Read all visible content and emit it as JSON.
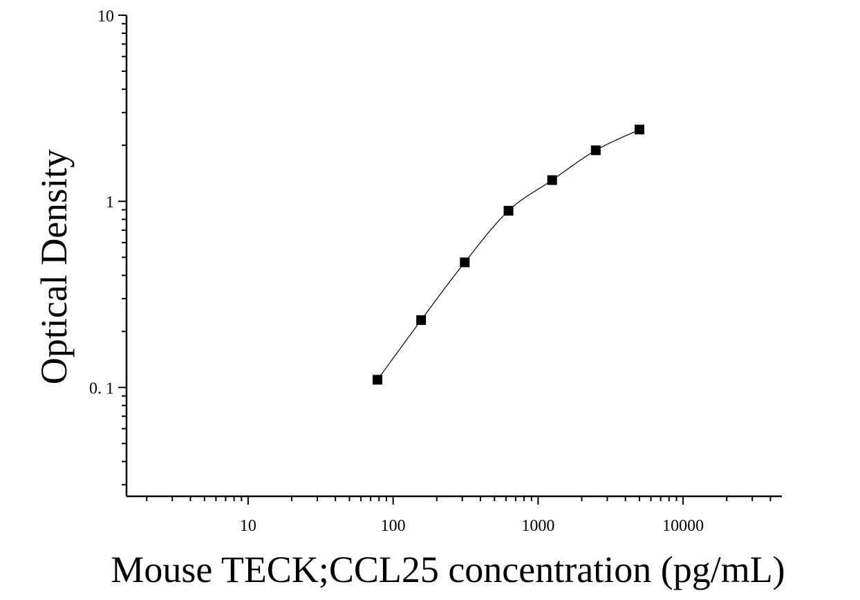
{
  "chart_data": {
    "type": "scatter",
    "title": "",
    "xlabel": "Mouse TECK;CCL25 concentration (pg/mL)",
    "ylabel": "Optical Density",
    "x_scale": "log",
    "y_scale": "log",
    "xlim": [
      1.45,
      48000
    ],
    "ylim": [
      0.026,
      10
    ],
    "x_ticks": [
      10,
      100,
      1000,
      10000
    ],
    "x_tick_labels": [
      "10",
      "100",
      "1000",
      "10000"
    ],
    "y_ticks": [
      0.1,
      1,
      10
    ],
    "y_tick_labels": [
      "0. 1",
      "1",
      "10"
    ],
    "grid": false,
    "legend": "none",
    "marker": "square",
    "marker_color": "#000000",
    "series": [
      {
        "x": [
          78,
          156,
          312,
          625,
          1250,
          2500,
          5000
        ],
        "y": [
          0.11,
          0.23,
          0.47,
          0.89,
          1.3,
          1.88,
          2.43
        ]
      }
    ],
    "fit_curve": {
      "x_range": [
        78,
        5000
      ],
      "color": "#000000"
    }
  }
}
